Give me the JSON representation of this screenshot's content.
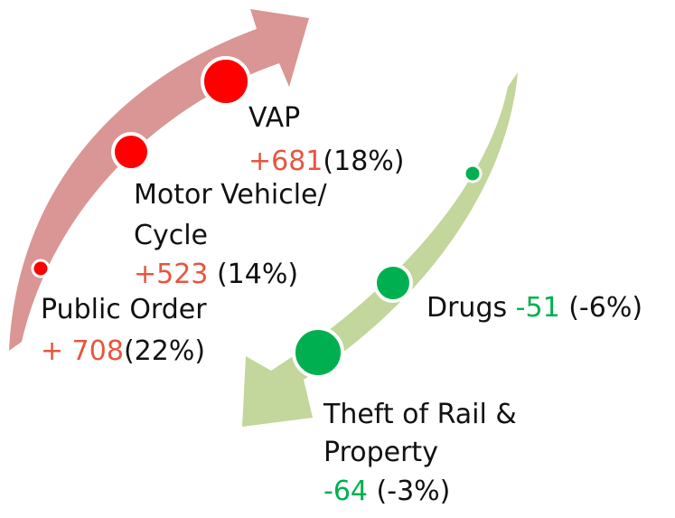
{
  "items": [
    {
      "label": [
        "VAP"
      ],
      "change": "+681",
      "share": "(18%)"
    },
    {
      "label": [
        "Motor Vehicle/",
        "Cycle"
      ],
      "change": "+523",
      "share": "(14%)"
    },
    {
      "label": [
        "Public Order"
      ],
      "change": "+ 708",
      "share": "(22%)"
    },
    {
      "label": [
        "Drugs"
      ],
      "change": "-51",
      "share": "(-6%)"
    },
    {
      "label": [
        "Theft of Rail &",
        "Property"
      ],
      "change": "-64",
      "share": "(-3%)"
    }
  ]
}
